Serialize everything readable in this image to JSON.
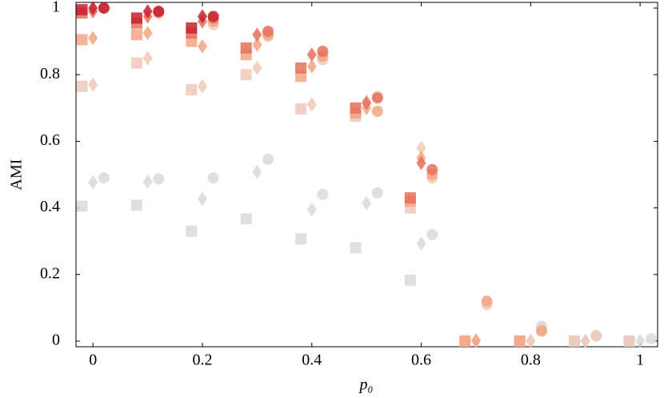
{
  "chart_data": {
    "type": "scatter",
    "xlabel": "p₀",
    "ylabel": "AMI",
    "xlim": [
      -0.031,
      1.032
    ],
    "ylim": [
      -0.017,
      1.017
    ],
    "xticks": [
      0,
      0.2,
      0.4,
      0.6,
      0.8,
      1
    ],
    "yticks": [
      0,
      0.2,
      0.4,
      0.6,
      0.8,
      1
    ],
    "series": [
      {
        "marker": "square",
        "color": "#d9d9d9",
        "x": [
          -0.02,
          0.08,
          0.18,
          0.28,
          0.38,
          0.48,
          0.58,
          0.68,
          0.78,
          0.88,
          0.98
        ],
        "values": [
          0.405,
          0.408,
          0.33,
          0.367,
          0.307,
          0.28,
          0.183,
          0,
          0,
          0,
          0
        ]
      },
      {
        "marker": "diamond",
        "color": "#d9d9d9",
        "x": [
          0,
          0.1,
          0.2,
          0.3,
          0.4,
          0.5,
          0.6,
          0.7,
          0.8,
          0.9,
          1
        ],
        "values": [
          0.477,
          0.478,
          0.427,
          0.508,
          0.395,
          0.414,
          0.293,
          0,
          0,
          0,
          0
        ]
      },
      {
        "marker": "circle",
        "color": "#d9d9d9",
        "x": [
          0.02,
          0.12,
          0.22,
          0.32,
          0.42,
          0.52,
          0.62,
          0.82,
          0.92,
          1.02
        ],
        "values": [
          0.49,
          0.487,
          0.49,
          0.546,
          0.44,
          0.445,
          0.32,
          0.045,
          0.017,
          0.007
        ]
      },
      {
        "marker": "square",
        "color": "#efc9b8",
        "x": [
          -0.02,
          0.08,
          0.18,
          0.28,
          0.38,
          0.48,
          0.58,
          0.68,
          0.78,
          0.88,
          0.98
        ],
        "values": [
          0.765,
          0.835,
          0.755,
          0.8,
          0.697,
          0.675,
          0.4,
          0,
          0,
          0,
          0
        ]
      },
      {
        "marker": "diamond",
        "color": "#efc9b8",
        "x": [
          0,
          0.1,
          0.2,
          0.3,
          0.4,
          0.5,
          0.6,
          0.7,
          0.8,
          0.9
        ],
        "values": [
          0.77,
          0.85,
          0.765,
          0.82,
          0.71,
          0.72,
          0.58,
          0,
          0,
          0
        ]
      },
      {
        "marker": "circle",
        "color": "#efc9b8",
        "x": [
          0.12,
          0.22,
          0.32,
          0.42,
          0.52,
          0.62,
          0.72,
          0.82,
          0.92
        ],
        "values": [
          0.985,
          0.95,
          0.915,
          0.845,
          0.735,
          0.49,
          0.11,
          0.035,
          0.015
        ]
      },
      {
        "marker": "square",
        "color": "#f4a582",
        "x": [
          -0.02,
          0.08,
          0.18,
          0.28,
          0.38,
          0.48,
          0.58,
          0.68,
          0.78
        ],
        "values": [
          0.905,
          0.92,
          0.9,
          0.86,
          0.795,
          0.685,
          0.42,
          0,
          0
        ]
      },
      {
        "marker": "diamond",
        "color": "#f4a582",
        "x": [
          0,
          0.1,
          0.2,
          0.3,
          0.4,
          0.5,
          0.6,
          0.7
        ],
        "values": [
          0.91,
          0.925,
          0.885,
          0.89,
          0.825,
          0.7,
          0.55,
          0.002
        ]
      },
      {
        "marker": "circle",
        "color": "#f4a582",
        "x": [
          0.12,
          0.22,
          0.32,
          0.42,
          0.52,
          0.62,
          0.72,
          0.82
        ],
        "values": [
          0.985,
          0.96,
          0.92,
          0.855,
          0.69,
          0.5,
          0.12,
          0.03
        ]
      },
      {
        "marker": "square",
        "color": "#e5705a",
        "x": [
          -0.02,
          0.08,
          0.18,
          0.28,
          0.38,
          0.48,
          0.58
        ],
        "values": [
          0.985,
          0.955,
          0.925,
          0.88,
          0.82,
          0.7,
          0.43
        ]
      },
      {
        "marker": "diamond",
        "color": "#e5705a",
        "x": [
          0,
          0.1,
          0.2,
          0.3,
          0.4,
          0.5,
          0.6
        ],
        "values": [
          0.99,
          0.975,
          0.96,
          0.92,
          0.86,
          0.715,
          0.535
        ]
      },
      {
        "marker": "circle",
        "color": "#e5705a",
        "x": [
          0.02,
          0.12,
          0.22,
          0.32,
          0.42,
          0.52,
          0.62
        ],
        "values": [
          1,
          0.99,
          0.97,
          0.93,
          0.87,
          0.73,
          0.515
        ]
      },
      {
        "marker": "square",
        "color": "#c8202f",
        "x": [
          -0.02,
          0.08,
          0.18
        ],
        "values": [
          0.995,
          0.97,
          0.94
        ]
      },
      {
        "marker": "diamond",
        "color": "#c8202f",
        "x": [
          0,
          0.1,
          0.2
        ],
        "values": [
          1,
          0.99,
          0.975
        ]
      },
      {
        "marker": "circle",
        "color": "#c8202f",
        "x": [
          0.02,
          0.12,
          0.22
        ],
        "values": [
          1,
          0.99,
          0.975
        ]
      }
    ]
  }
}
